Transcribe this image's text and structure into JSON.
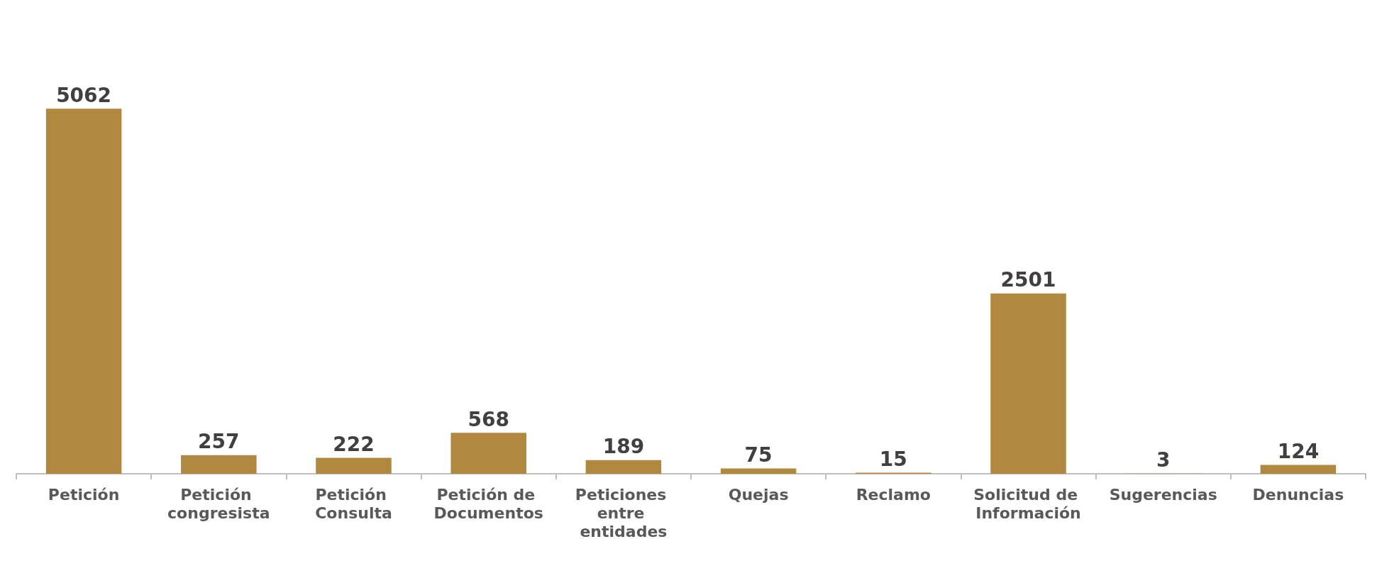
{
  "chart_data": {
    "type": "bar",
    "categories": [
      "Petición",
      "Petición congresista",
      "Petición Consulta",
      "Petición de Documentos",
      "Peticiones entre entidades",
      "Quejas",
      "Reclamo",
      "Solicitud de Información",
      "Sugerencias",
      "Denuncias"
    ],
    "values": [
      5062,
      257,
      222,
      568,
      189,
      75,
      15,
      2501,
      3,
      124
    ],
    "color": "#b08840",
    "data_labels": true
  }
}
